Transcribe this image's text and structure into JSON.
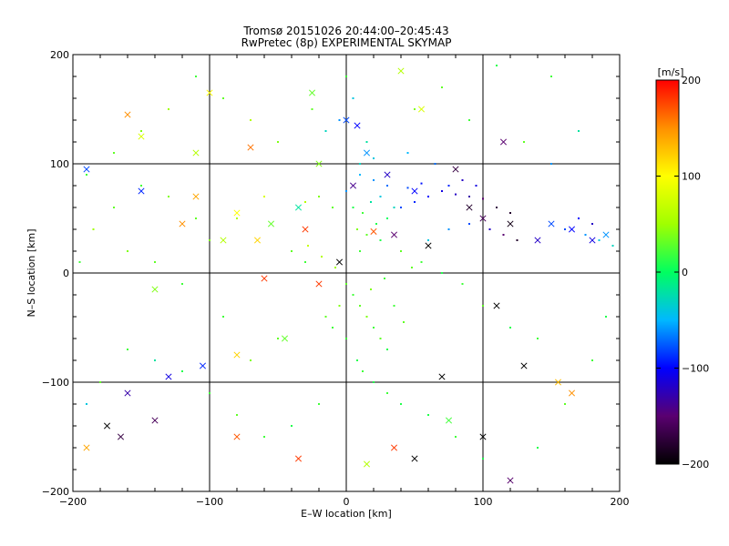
{
  "chart_data": {
    "type": "scatter",
    "title": "Tromsø 20151026 20:44:00–20:45:43",
    "subtitle": "RwPretec (8p) EXPERIMENTAL SKYMAP",
    "xlabel": "E–W location [km]",
    "ylabel": "N–S location [km]",
    "xlim": [
      -200,
      200
    ],
    "ylim": [
      -200,
      200
    ],
    "x_ticks": [
      -200,
      -100,
      0,
      100,
      200
    ],
    "y_ticks": [
      -200,
      -100,
      0,
      100,
      200
    ],
    "x_tick_labels": [
      "−200",
      "−100",
      "0",
      "100",
      "200"
    ],
    "y_tick_labels": [
      "−200",
      "−100",
      "0",
      "100",
      "200"
    ],
    "grid": true,
    "colorbar": {
      "label": "[m/s]",
      "range": [
        -200,
        200
      ],
      "ticks": [
        200,
        100,
        0,
        -100,
        -200
      ],
      "tick_labels": [
        "200",
        "100",
        "0",
        "−100",
        "−200"
      ],
      "colormap": [
        "#000000",
        "#5a0070",
        "#0000ff",
        "#00b8ff",
        "#00ff60",
        "#a0ff00",
        "#ffff00",
        "#ff9000",
        "#ff0000"
      ]
    },
    "series": [
      {
        "marker": "dot",
        "points": [
          [
            5,
            60,
            10
          ],
          [
            12,
            55,
            20
          ],
          [
            18,
            65,
            -20
          ],
          [
            25,
            70,
            -40
          ],
          [
            30,
            50,
            0
          ],
          [
            8,
            40,
            40
          ],
          [
            15,
            35,
            30
          ],
          [
            22,
            45,
            10
          ],
          [
            0,
            75,
            -60
          ],
          [
            -10,
            60,
            30
          ],
          [
            -20,
            70,
            40
          ],
          [
            -30,
            65,
            60
          ],
          [
            40,
            60,
            -80
          ],
          [
            50,
            65,
            -90
          ],
          [
            60,
            70,
            -100
          ],
          [
            70,
            75,
            -110
          ],
          [
            80,
            72,
            -120
          ],
          [
            90,
            70,
            -130
          ],
          [
            100,
            68,
            -150
          ],
          [
            110,
            60,
            -170
          ],
          [
            120,
            55,
            -180
          ],
          [
            85,
            85,
            -120
          ],
          [
            95,
            80,
            -110
          ],
          [
            75,
            80,
            -90
          ],
          [
            20,
            85,
            -60
          ],
          [
            10,
            90,
            -50
          ],
          [
            30,
            80,
            -70
          ],
          [
            45,
            78,
            -80
          ],
          [
            55,
            82,
            -95
          ],
          [
            35,
            60,
            -30
          ],
          [
            25,
            30,
            10
          ],
          [
            10,
            20,
            20
          ],
          [
            0,
            -10,
            30
          ],
          [
            5,
            -20,
            20
          ],
          [
            10,
            -30,
            30
          ],
          [
            15,
            -40,
            40
          ],
          [
            20,
            -50,
            20
          ],
          [
            25,
            -60,
            30
          ],
          [
            30,
            -70,
            10
          ],
          [
            -5,
            -30,
            40
          ],
          [
            -10,
            -50,
            20
          ],
          [
            -15,
            -40,
            30
          ],
          [
            0,
            -60,
            20
          ],
          [
            8,
            -80,
            10
          ],
          [
            12,
            -90,
            20
          ],
          [
            20,
            -100,
            10
          ],
          [
            30,
            -110,
            20
          ],
          [
            40,
            -120,
            10
          ],
          [
            -20,
            -120,
            20
          ],
          [
            -40,
            -140,
            10
          ],
          [
            -60,
            -150,
            20
          ],
          [
            -80,
            -130,
            30
          ],
          [
            -100,
            -110,
            20
          ],
          [
            -120,
            -90,
            10
          ],
          [
            -140,
            -80,
            -20
          ],
          [
            -160,
            -70,
            20
          ],
          [
            -180,
            -100,
            30
          ],
          [
            -190,
            -120,
            -40
          ],
          [
            60,
            -130,
            10
          ],
          [
            80,
            -150,
            20
          ],
          [
            100,
            -170,
            10
          ],
          [
            120,
            -190,
            20
          ],
          [
            140,
            -160,
            10
          ],
          [
            160,
            -120,
            30
          ],
          [
            180,
            -80,
            20
          ],
          [
            190,
            -40,
            10
          ],
          [
            -50,
            120,
            40
          ],
          [
            -70,
            140,
            60
          ],
          [
            -90,
            160,
            30
          ],
          [
            -110,
            180,
            20
          ],
          [
            -130,
            150,
            50
          ],
          [
            -150,
            130,
            40
          ],
          [
            -170,
            110,
            30
          ],
          [
            -190,
            90,
            20
          ],
          [
            50,
            150,
            40
          ],
          [
            70,
            170,
            30
          ],
          [
            90,
            140,
            20
          ],
          [
            110,
            190,
            10
          ],
          [
            150,
            180,
            20
          ],
          [
            170,
            130,
            -20
          ],
          [
            130,
            120,
            30
          ],
          [
            150,
            100,
            -60
          ],
          [
            -160,
            20,
            40
          ],
          [
            -140,
            10,
            30
          ],
          [
            -120,
            -10,
            20
          ],
          [
            -100,
            30,
            40
          ],
          [
            -80,
            50,
            60
          ],
          [
            -60,
            70,
            80
          ],
          [
            0,
            180,
            20
          ],
          [
            5,
            160,
            -40
          ],
          [
            -5,
            140,
            -60
          ],
          [
            -15,
            130,
            -30
          ],
          [
            -25,
            150,
            30
          ],
          [
            15,
            120,
            -20
          ],
          [
            45,
            110,
            -50
          ],
          [
            65,
            100,
            -70
          ],
          [
            160,
            40,
            -80
          ],
          [
            175,
            35,
            -60
          ],
          [
            185,
            30,
            -40
          ],
          [
            195,
            25,
            -30
          ],
          [
            170,
            50,
            -100
          ],
          [
            180,
            45,
            -120
          ],
          [
            -40,
            20,
            30
          ],
          [
            -30,
            10,
            20
          ],
          [
            40,
            20,
            30
          ],
          [
            55,
            10,
            20
          ],
          [
            70,
            0,
            10
          ],
          [
            85,
            -10,
            20
          ],
          [
            100,
            -30,
            30
          ],
          [
            120,
            -50,
            10
          ],
          [
            140,
            -60,
            20
          ],
          [
            -50,
            -60,
            30
          ],
          [
            -70,
            -80,
            40
          ],
          [
            -90,
            -40,
            20
          ],
          [
            -110,
            50,
            30
          ],
          [
            -130,
            70,
            40
          ],
          [
            -150,
            80,
            20
          ],
          [
            -170,
            60,
            30
          ],
          [
            -185,
            40,
            50
          ],
          [
            -195,
            10,
            20
          ],
          [
            35,
            -30,
            20
          ],
          [
            42,
            -45,
            30
          ],
          [
            18,
            -15,
            40
          ],
          [
            -8,
            5,
            50
          ],
          [
            -18,
            15,
            60
          ],
          [
            -28,
            25,
            70
          ],
          [
            28,
            -5,
            20
          ],
          [
            48,
            5,
            30
          ],
          [
            60,
            30,
            -40
          ],
          [
            75,
            40,
            -60
          ],
          [
            90,
            45,
            -80
          ],
          [
            105,
            40,
            -120
          ],
          [
            115,
            35,
            -150
          ],
          [
            125,
            30,
            -180
          ],
          [
            10,
            100,
            -30
          ],
          [
            20,
            105,
            -40
          ]
        ]
      },
      {
        "marker": "x",
        "points": [
          [
            -190,
            95,
            -80
          ],
          [
            -150,
            75,
            -90
          ],
          [
            -120,
            45,
            150
          ],
          [
            -65,
            30,
            120
          ],
          [
            -30,
            40,
            180
          ],
          [
            20,
            38,
            170
          ],
          [
            35,
            35,
            -150
          ],
          [
            60,
            25,
            -200
          ],
          [
            90,
            60,
            -180
          ],
          [
            100,
            50,
            -160
          ],
          [
            120,
            45,
            -190
          ],
          [
            140,
            30,
            -120
          ],
          [
            150,
            45,
            -80
          ],
          [
            165,
            40,
            -100
          ],
          [
            180,
            30,
            -110
          ],
          [
            190,
            35,
            -60
          ],
          [
            -100,
            165,
            100
          ],
          [
            -150,
            125,
            80
          ],
          [
            -160,
            145,
            150
          ],
          [
            -110,
            110,
            60
          ],
          [
            -20,
            100,
            40
          ],
          [
            0,
            140,
            -80
          ],
          [
            8,
            135,
            -100
          ],
          [
            15,
            110,
            -60
          ],
          [
            -5,
            10,
            -200
          ],
          [
            -20,
            -10,
            180
          ],
          [
            -45,
            -60,
            30
          ],
          [
            -80,
            -75,
            120
          ],
          [
            -105,
            -85,
            -90
          ],
          [
            -130,
            -95,
            -110
          ],
          [
            -160,
            -110,
            -130
          ],
          [
            -175,
            -140,
            -200
          ],
          [
            -190,
            -160,
            140
          ],
          [
            -165,
            -150,
            -170
          ],
          [
            -140,
            -135,
            -160
          ],
          [
            -80,
            -150,
            170
          ],
          [
            -35,
            -170,
            180
          ],
          [
            15,
            -175,
            60
          ],
          [
            35,
            -160,
            180
          ],
          [
            50,
            -170,
            -200
          ],
          [
            75,
            -135,
            20
          ],
          [
            100,
            -150,
            -200
          ],
          [
            120,
            -190,
            -150
          ],
          [
            155,
            -100,
            130
          ],
          [
            165,
            -110,
            150
          ],
          [
            70,
            -95,
            -200
          ],
          [
            110,
            -30,
            -200
          ],
          [
            130,
            -85,
            -200
          ],
          [
            -110,
            70,
            140
          ],
          [
            -80,
            55,
            100
          ],
          [
            -55,
            45,
            30
          ],
          [
            -35,
            60,
            -20
          ],
          [
            5,
            80,
            -140
          ],
          [
            30,
            90,
            -120
          ],
          [
            50,
            75,
            -100
          ],
          [
            80,
            95,
            -170
          ],
          [
            115,
            120,
            -150
          ],
          [
            -25,
            165,
            30
          ],
          [
            40,
            185,
            60
          ],
          [
            55,
            150,
            80
          ],
          [
            -70,
            115,
            160
          ],
          [
            -90,
            30,
            60
          ],
          [
            -140,
            -15,
            40
          ],
          [
            -60,
            -5,
            180
          ]
        ]
      }
    ]
  }
}
